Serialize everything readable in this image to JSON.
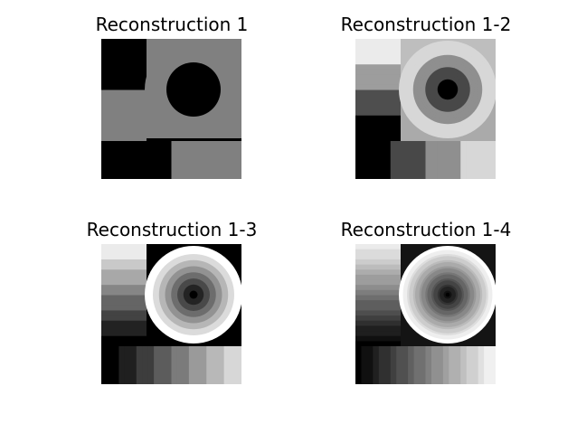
{
  "figure": {
    "panels": [
      {
        "title": "Reconstruction 1",
        "levels": 1
      },
      {
        "title": "Reconstruction 1-2",
        "levels": 2
      },
      {
        "title": "Reconstruction 1-3",
        "levels": 3
      },
      {
        "title": "Reconstruction 1-4",
        "levels": 4
      }
    ]
  }
}
